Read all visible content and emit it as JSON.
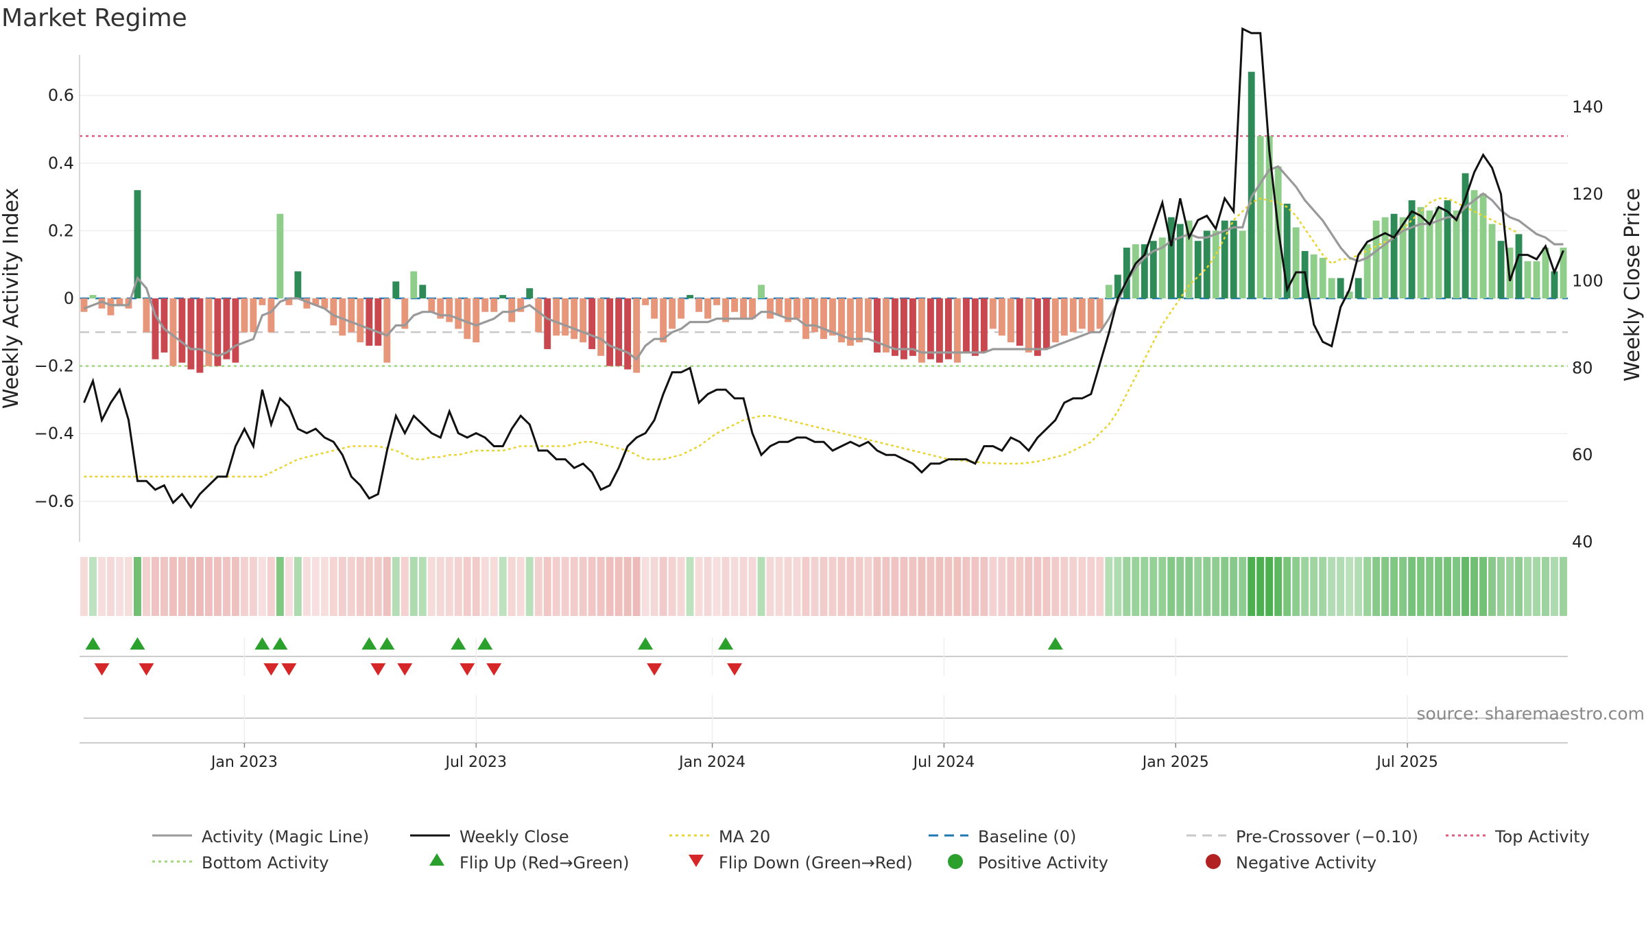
{
  "title": "Market Regime",
  "source": "source: sharemaestro.com",
  "chart_data": {
    "type": "bar+line",
    "ylabel": "Weekly Activity Index",
    "y2label": "Weekly Close Price",
    "ylim": [
      -0.72,
      0.72
    ],
    "y2lim": [
      40,
      152
    ],
    "yticks": [
      "0.6",
      "0.4",
      "0.2",
      "0",
      "−0.2",
      "−0.4",
      "−0.6"
    ],
    "yticks_values": [
      0.6,
      0.4,
      0.2,
      0,
      -0.2,
      -0.4,
      -0.6
    ],
    "y2ticks": [
      "140",
      "120",
      "100",
      "80",
      "60",
      "40"
    ],
    "y2ticks_values": [
      140,
      120,
      100,
      80,
      60,
      40
    ],
    "xticks": [
      {
        "label": "Jan 2023",
        "week": 18
      },
      {
        "label": "Jul 2023",
        "week": 44
      },
      {
        "label": "Jan 2024",
        "week": 70.5
      },
      {
        "label": "Jul 2024",
        "week": 96.5
      },
      {
        "label": "Jan 2025",
        "week": 122.5
      },
      {
        "label": "Jul 2025",
        "week": 148.5
      }
    ],
    "thresholds": {
      "top_activity": 0.48,
      "pre_crossover": -0.1,
      "bottom_activity": -0.2,
      "baseline": 0
    },
    "activity": [
      -0.04,
      0.01,
      -0.03,
      -0.05,
      -0.02,
      -0.03,
      0.32,
      -0.1,
      -0.18,
      -0.16,
      -0.2,
      -0.19,
      -0.21,
      -0.22,
      -0.2,
      -0.2,
      -0.18,
      -0.19,
      -0.1,
      -0.1,
      -0.02,
      -0.1,
      0.25,
      -0.02,
      0.08,
      -0.03,
      -0.02,
      -0.03,
      -0.08,
      -0.11,
      -0.1,
      -0.13,
      -0.14,
      -0.14,
      -0.19,
      0.05,
      -0.09,
      0.08,
      0.04,
      -0.04,
      -0.06,
      -0.07,
      -0.09,
      -0.12,
      -0.13,
      -0.04,
      -0.04,
      0.01,
      -0.07,
      -0.04,
      0.03,
      -0.1,
      -0.15,
      -0.11,
      -0.11,
      -0.12,
      -0.13,
      -0.15,
      -0.17,
      -0.2,
      -0.2,
      -0.21,
      -0.22,
      -0.02,
      -0.06,
      -0.13,
      -0.09,
      -0.06,
      0.01,
      -0.04,
      -0.06,
      -0.02,
      -0.07,
      -0.04,
      -0.06,
      -0.06,
      0.04,
      -0.06,
      -0.05,
      -0.07,
      -0.06,
      -0.12,
      -0.1,
      -0.12,
      -0.11,
      -0.13,
      -0.14,
      -0.13,
      -0.1,
      -0.16,
      -0.16,
      -0.17,
      -0.18,
      -0.17,
      -0.19,
      -0.18,
      -0.19,
      -0.18,
      -0.19,
      -0.16,
      -0.17,
      -0.16,
      -0.09,
      -0.11,
      -0.13,
      -0.14,
      -0.16,
      -0.17,
      -0.15,
      -0.13,
      -0.11,
      -0.1,
      -0.09,
      -0.1,
      -0.09,
      0.04,
      0.07,
      0.15,
      0.16,
      0.16,
      0.17,
      0.18,
      0.24,
      0.22,
      0.23,
      0.17,
      0.2,
      0.2,
      0.23,
      0.23,
      0.2,
      0.67,
      0.48,
      0.48,
      0.39,
      0.28,
      0.21,
      0.14,
      0.13,
      0.12,
      0.06,
      0.06,
      0.02,
      0.06,
      0.16,
      0.23,
      0.24,
      0.25,
      0.24,
      0.29,
      0.27,
      0.26,
      0.27,
      0.29,
      0.26,
      0.37,
      0.32,
      0.31,
      0.22,
      0.17,
      0.15,
      0.19,
      0.11,
      0.11,
      0.15,
      0.08,
      0.15
    ],
    "magic_line": [
      -0.03,
      -0.02,
      -0.01,
      -0.02,
      -0.02,
      -0.02,
      0.06,
      0.03,
      -0.05,
      -0.09,
      -0.11,
      -0.13,
      -0.15,
      -0.15,
      -0.16,
      -0.17,
      -0.16,
      -0.14,
      -0.13,
      -0.12,
      -0.05,
      -0.04,
      -0.01,
      0.0,
      0.0,
      -0.01,
      -0.02,
      -0.03,
      -0.05,
      -0.06,
      -0.07,
      -0.08,
      -0.09,
      -0.1,
      -0.11,
      -0.08,
      -0.08,
      -0.05,
      -0.04,
      -0.04,
      -0.05,
      -0.05,
      -0.06,
      -0.07,
      -0.08,
      -0.07,
      -0.06,
      -0.04,
      -0.04,
      -0.03,
      -0.02,
      -0.04,
      -0.06,
      -0.07,
      -0.08,
      -0.09,
      -0.1,
      -0.11,
      -0.12,
      -0.14,
      -0.15,
      -0.16,
      -0.18,
      -0.14,
      -0.12,
      -0.12,
      -0.1,
      -0.09,
      -0.07,
      -0.07,
      -0.07,
      -0.06,
      -0.06,
      -0.06,
      -0.06,
      -0.06,
      -0.04,
      -0.04,
      -0.05,
      -0.06,
      -0.06,
      -0.08,
      -0.08,
      -0.09,
      -0.1,
      -0.11,
      -0.12,
      -0.12,
      -0.12,
      -0.13,
      -0.14,
      -0.15,
      -0.15,
      -0.15,
      -0.16,
      -0.16,
      -0.16,
      -0.16,
      -0.16,
      -0.16,
      -0.16,
      -0.16,
      -0.15,
      -0.15,
      -0.15,
      -0.15,
      -0.15,
      -0.15,
      -0.15,
      -0.14,
      -0.13,
      -0.12,
      -0.11,
      -0.1,
      -0.1,
      -0.06,
      -0.01,
      0.05,
      0.09,
      0.12,
      0.14,
      0.15,
      0.17,
      0.18,
      0.19,
      0.18,
      0.18,
      0.19,
      0.2,
      0.21,
      0.21,
      0.3,
      0.34,
      0.38,
      0.39,
      0.36,
      0.33,
      0.29,
      0.26,
      0.23,
      0.19,
      0.15,
      0.12,
      0.11,
      0.12,
      0.14,
      0.16,
      0.18,
      0.2,
      0.21,
      0.22,
      0.22,
      0.23,
      0.24,
      0.24,
      0.27,
      0.29,
      0.31,
      0.29,
      0.26,
      0.24,
      0.23,
      0.21,
      0.19,
      0.18,
      0.16,
      0.16
    ],
    "close": [
      72,
      77,
      68,
      72,
      75,
      68,
      54,
      54,
      52,
      53,
      49,
      51,
      48,
      51,
      53,
      55,
      55,
      62,
      66,
      62,
      75,
      67,
      73,
      71,
      66,
      65,
      66,
      64,
      63,
      60,
      55,
      53,
      50,
      51,
      61,
      69,
      65,
      69,
      67,
      65,
      64,
      70,
      65,
      64,
      65,
      64,
      62,
      62,
      66,
      69,
      67,
      61,
      61,
      59,
      59,
      57,
      58,
      56,
      52,
      53,
      57,
      62,
      64,
      65,
      68,
      74,
      79,
      79,
      80,
      72,
      74,
      75,
      75,
      73,
      73,
      65,
      60,
      62,
      63,
      63,
      64,
      64,
      63,
      63,
      61,
      62,
      63,
      62,
      63,
      61,
      60,
      60,
      59,
      58,
      56,
      58,
      58,
      59,
      59,
      59,
      58,
      62,
      62,
      61,
      64,
      63,
      61,
      64,
      66,
      68,
      72,
      73,
      73,
      74,
      81,
      88,
      96,
      100,
      104,
      106,
      112,
      118,
      108,
      119,
      110,
      114,
      115,
      112,
      119,
      116,
      158,
      157,
      157,
      130,
      112,
      98,
      102,
      102,
      90,
      86,
      85,
      94,
      98,
      106,
      109,
      110,
      111,
      110,
      113,
      116,
      115,
      113,
      117,
      116,
      114,
      119,
      125,
      129,
      126,
      120,
      100,
      106,
      106,
      105,
      108,
      102,
      107
    ],
    "ma20": [
      55,
      55,
      55,
      55,
      55,
      55,
      55,
      55,
      55,
      55,
      55,
      55,
      55,
      55,
      55,
      55,
      55,
      55,
      55,
      55,
      55,
      56,
      57,
      58,
      59,
      59.5,
      60,
      60.5,
      61,
      61.5,
      62,
      62,
      62,
      62,
      61.5,
      61,
      60,
      59,
      59,
      59.5,
      59.5,
      60,
      60,
      60.5,
      61,
      61,
      61,
      61,
      61.5,
      62,
      62,
      62,
      62,
      62,
      62,
      62.5,
      63,
      63,
      62.5,
      62,
      61.5,
      61,
      60,
      59,
      59,
      59,
      59.5,
      60,
      61,
      62,
      63.5,
      65,
      66,
      67,
      68,
      68.5,
      69,
      69,
      68.5,
      68,
      67.5,
      67,
      66.5,
      66,
      65.5,
      65,
      64.5,
      64,
      63.5,
      63,
      62.5,
      62,
      61.5,
      61,
      60.5,
      60,
      59.5,
      59,
      58.8,
      58.6,
      58.4,
      58.2,
      58.1,
      58,
      58,
      58,
      58.2,
      58.5,
      59,
      59.5,
      60,
      61,
      62,
      63,
      65,
      67,
      70,
      74,
      78,
      82,
      86,
      90,
      93,
      96,
      99,
      101,
      103,
      106,
      110,
      114,
      116,
      118,
      119,
      118.5,
      118,
      117,
      115,
      112,
      109,
      106,
      104,
      105,
      105,
      106,
      107,
      108,
      109,
      110,
      112,
      114,
      116,
      118,
      119,
      119,
      118,
      117,
      116,
      115,
      114,
      113,
      112,
      111
    ],
    "regime_strip_levels": "per-bar shading red (negative) to green (positive); intensity by magnitude",
    "flip_up_weeks": [
      1,
      6,
      20,
      22,
      32,
      34,
      42,
      45,
      63,
      72,
      109
    ],
    "flip_down_weeks": [
      2,
      7,
      21,
      23,
      33,
      36,
      43,
      46,
      64,
      73
    ],
    "legend": {
      "row1": [
        {
          "label": "Activity (Magic Line)",
          "color": "#999999",
          "style": "solid"
        },
        {
          "label": "Weekly Close",
          "color": "#111111",
          "style": "solid"
        },
        {
          "label": "MA 20",
          "color": "#e8d431",
          "style": "dotted"
        },
        {
          "label": "Baseline (0)",
          "color": "#1f77b4",
          "style": "dashed"
        },
        {
          "label": "Pre-Crossover (−0.10)",
          "color": "#c8c8c8",
          "style": "dashed"
        },
        {
          "label": "Top Activity",
          "color": "#e05a7a",
          "style": "dotted"
        }
      ],
      "row2": [
        {
          "label": "Bottom Activity",
          "color": "#9ed67a",
          "style": "dotted"
        },
        {
          "label": "Flip Up (Red→Green)",
          "color": "#2ca02c",
          "marker": "triangle-up"
        },
        {
          "label": "Flip Down (Green→Red)",
          "color": "#d62728",
          "marker": "triangle-down"
        },
        {
          "label": "Positive Activity",
          "color": "#2ca02c",
          "marker": "circle"
        },
        {
          "label": "Negative Activity",
          "color": "#b22222",
          "marker": "circle"
        }
      ]
    },
    "colors": {
      "pos_strong": "#2e8b57",
      "pos_light": "#8fce8a",
      "neg_strong": "#c9484f",
      "neg_light": "#e8967a",
      "strip_pos": "#4caf50",
      "strip_neg": "#d9736f",
      "flip_up": "#2ca02c",
      "flip_down": "#d62728"
    }
  }
}
